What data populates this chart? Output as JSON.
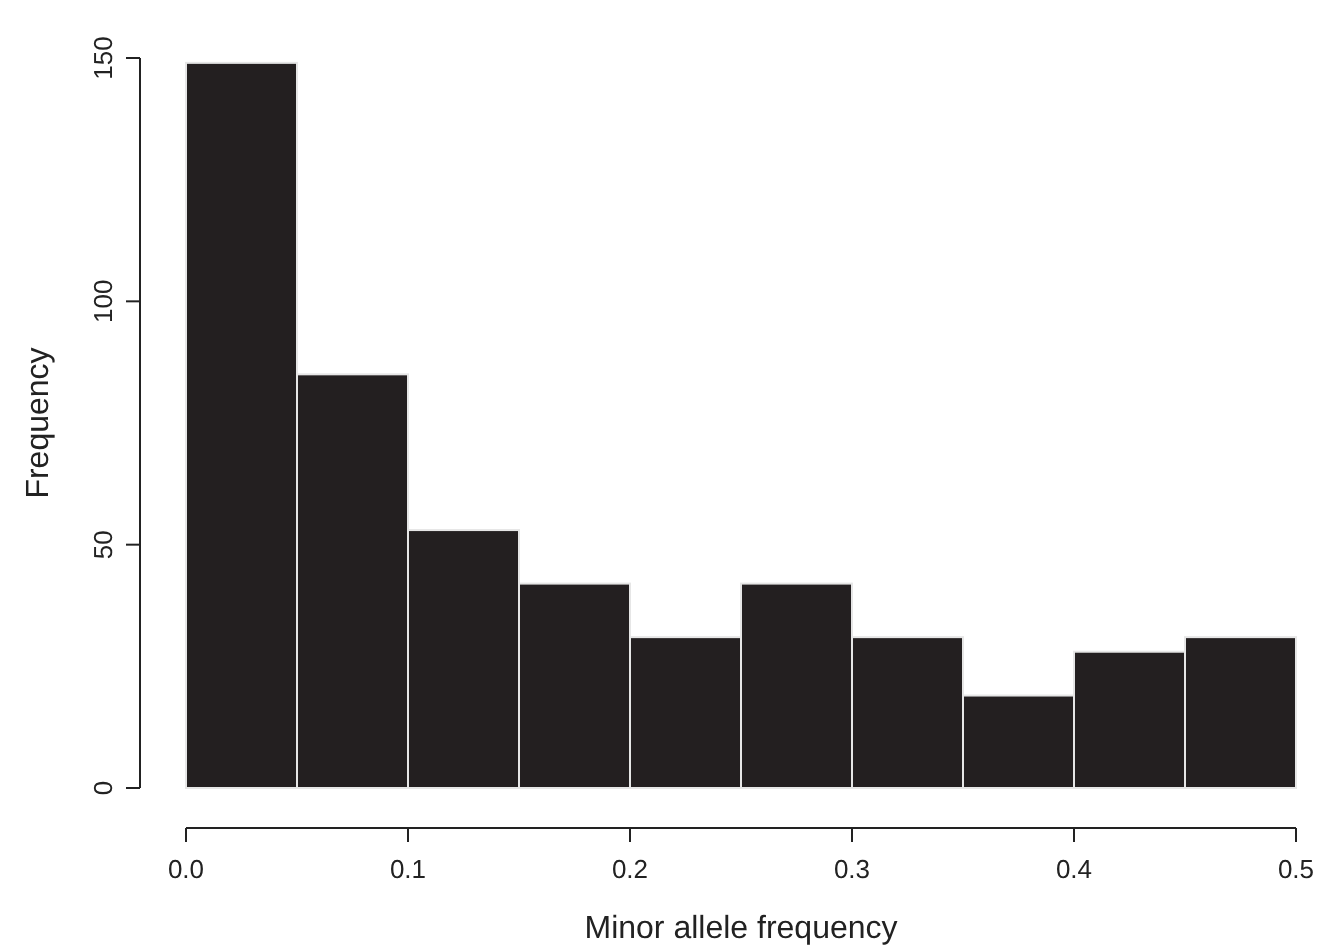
{
  "chart_data": {
    "type": "histogram",
    "xlabel": "Minor allele frequency",
    "ylabel": "Frequency",
    "bins": [
      0,
      0.05,
      0.1,
      0.15,
      0.2,
      0.25,
      0.3,
      0.35,
      0.4,
      0.45,
      0.5
    ],
    "values": [
      149,
      85,
      53,
      42,
      31,
      42,
      31,
      19,
      28,
      31
    ],
    "color": "#231f20",
    "xlim": [
      0,
      0.5
    ],
    "xticks": [
      {
        "value": 0,
        "label": "0.0"
      },
      0.1,
      0.2,
      0.3,
      0.4,
      0.5
    ],
    "ylim": [
      0,
      150
    ],
    "yticks": [
      0,
      50,
      100,
      150
    ]
  }
}
